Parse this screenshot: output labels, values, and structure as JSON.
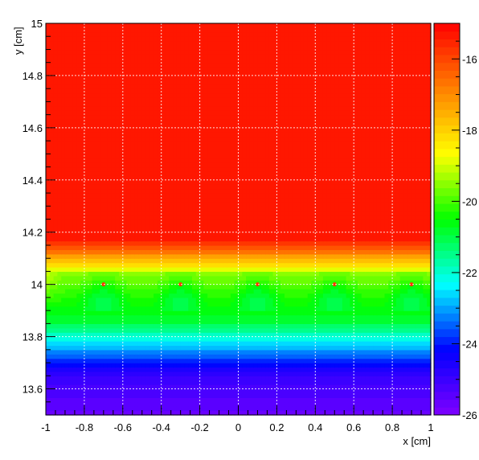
{
  "chart_data": {
    "type": "heatmap",
    "title": "",
    "xlabel": "x [cm]",
    "ylabel": "y [cm]",
    "xlim": [
      -1,
      1
    ],
    "ylim": [
      13.5,
      15
    ],
    "zlim": [
      -26,
      -15
    ],
    "x_ticks": [
      "-1",
      "-0.8",
      "-0.6",
      "-0.4",
      "-0.2",
      "0",
      "0.2",
      "0.4",
      "0.6",
      "0.8",
      "1"
    ],
    "x_tick_values": [
      -1,
      -0.8,
      -0.6,
      -0.4,
      -0.2,
      0,
      0.2,
      0.4,
      0.6,
      0.8,
      1
    ],
    "y_ticks": [
      "13.6",
      "13.8",
      "14",
      "14.2",
      "14.4",
      "14.6",
      "14.8",
      "15"
    ],
    "y_tick_values": [
      13.6,
      13.8,
      14,
      14.2,
      14.4,
      14.6,
      14.8,
      15
    ],
    "z_ticks": [
      "-16",
      "-18",
      "-20",
      "-22",
      "-24",
      "-26"
    ],
    "z_tick_values": [
      -16,
      -18,
      -20,
      -22,
      -24,
      -26
    ],
    "grid": true,
    "colorbar": "right",
    "palette": [
      "#8000ff",
      "#0000ff",
      "#00ffff",
      "#00ff00",
      "#ffff00",
      "#ff8000",
      "#ff0000"
    ],
    "wire_positions_x": [
      -0.7,
      -0.3,
      0.1,
      0.5,
      0.9
    ],
    "wire_y": 14.0
  }
}
